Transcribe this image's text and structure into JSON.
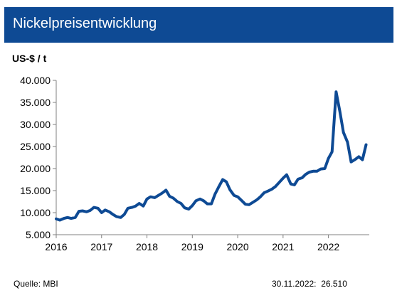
{
  "header": {
    "title": "Nickelpreisentwicklung",
    "unit": "US-$ / t",
    "bar_color": "#0e4a94"
  },
  "footer": {
    "source": "Quelle: MBI",
    "date": "30.11.2022:",
    "value": "26.510"
  },
  "chart_data": {
    "type": "line",
    "title": "Nickelpreisentwicklung",
    "ylabel": "US-$ / t",
    "xlabel": "",
    "xlim": [
      2016.0,
      2022.9
    ],
    "ylim": [
      5000,
      40000
    ],
    "x_ticks": [
      2016,
      2017,
      2018,
      2019,
      2020,
      2021,
      2022
    ],
    "x_tick_labels": [
      "2016",
      "2017",
      "2018",
      "2019",
      "2020",
      "2021",
      "2022"
    ],
    "y_ticks": [
      5000,
      10000,
      15000,
      20000,
      25000,
      30000,
      35000,
      40000
    ],
    "y_tick_labels": [
      "5.000",
      "10.000",
      "15.000",
      "20.000",
      "25.000",
      "30.000",
      "35.000",
      "40.000"
    ],
    "grid": false,
    "legend": "none",
    "line_color": "#0e4a94",
    "series": [
      {
        "x": [
          2016.0,
          2016.08,
          2016.17,
          2016.25,
          2016.33,
          2016.42,
          2016.5,
          2016.58,
          2016.67,
          2016.75,
          2016.83,
          2016.92,
          2017.0,
          2017.08,
          2017.17,
          2017.25,
          2017.33,
          2017.42,
          2017.5,
          2017.58,
          2017.67,
          2017.75,
          2017.83,
          2017.92,
          2018.0,
          2018.08,
          2018.17,
          2018.25,
          2018.33,
          2018.42,
          2018.5,
          2018.58,
          2018.67,
          2018.75,
          2018.83,
          2018.92,
          2019.0,
          2019.08,
          2019.17,
          2019.25,
          2019.33,
          2019.42,
          2019.5,
          2019.58,
          2019.67,
          2019.75,
          2019.83,
          2019.92,
          2020.0,
          2020.08,
          2020.17,
          2020.25,
          2020.33,
          2020.42,
          2020.5,
          2020.58,
          2020.67,
          2020.75,
          2020.83,
          2020.92,
          2021.0,
          2021.08,
          2021.17,
          2021.25,
          2021.33,
          2021.42,
          2021.5,
          2021.58,
          2021.67,
          2021.75,
          2021.83,
          2021.92,
          2022.0,
          2022.08,
          2022.17,
          2022.25,
          2022.33,
          2022.42,
          2022.5,
          2022.58,
          2022.67,
          2022.75,
          2022.83
        ],
        "values": [
          8600,
          8300,
          8700,
          8900,
          8700,
          8900,
          10300,
          10400,
          10200,
          10500,
          11200,
          11000,
          10000,
          10600,
          10200,
          9600,
          9100,
          8900,
          9600,
          11000,
          11200,
          11500,
          12100,
          11500,
          13100,
          13600,
          13400,
          13900,
          14400,
          15100,
          13700,
          13300,
          12500,
          12100,
          11100,
          10800,
          11600,
          12700,
          13100,
          12700,
          12000,
          12000,
          14200,
          15800,
          17500,
          17000,
          15200,
          13900,
          13600,
          12800,
          11900,
          11800,
          12300,
          12900,
          13600,
          14500,
          14900,
          15300,
          15900,
          16900,
          17800,
          18600,
          16500,
          16300,
          17600,
          17900,
          18700,
          19200,
          19400,
          19400,
          19900,
          20000,
          22300,
          23800,
          37400,
          33000,
          28200,
          26000,
          21500,
          22000,
          22700,
          22000,
          25400
        ]
      }
    ]
  }
}
